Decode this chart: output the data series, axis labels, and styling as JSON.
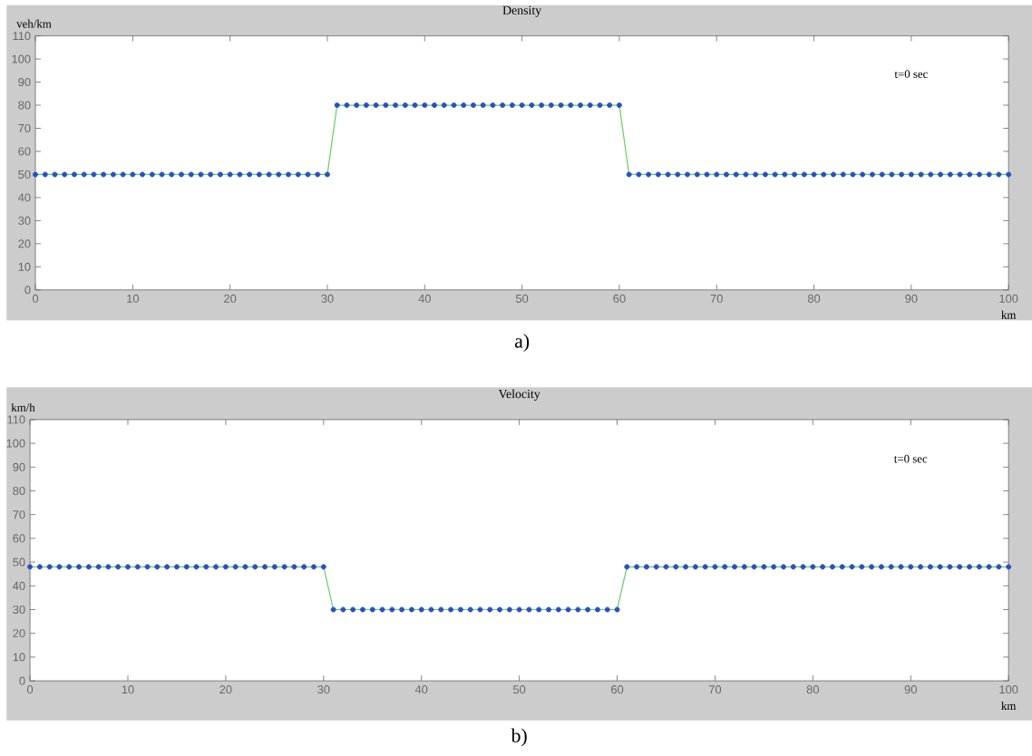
{
  "chart_data": [
    {
      "type": "line",
      "title": "Density",
      "ylabel": "veh/km",
      "xlabel": "km",
      "annotations": [
        "t=0 sec",
        "a)"
      ],
      "x": [
        0,
        1,
        2,
        3,
        4,
        5,
        6,
        7,
        8,
        9,
        10,
        11,
        12,
        13,
        14,
        15,
        16,
        17,
        18,
        19,
        20,
        21,
        22,
        23,
        24,
        25,
        26,
        27,
        28,
        29,
        30,
        31,
        32,
        33,
        34,
        35,
        36,
        37,
        38,
        39,
        40,
        41,
        42,
        43,
        44,
        45,
        46,
        47,
        48,
        49,
        50,
        51,
        52,
        53,
        54,
        55,
        56,
        57,
        58,
        59,
        60,
        61,
        62,
        63,
        64,
        65,
        66,
        67,
        68,
        69,
        70,
        71,
        72,
        73,
        74,
        75,
        76,
        77,
        78,
        79,
        80,
        81,
        82,
        83,
        84,
        85,
        86,
        87,
        88,
        89,
        90,
        91,
        92,
        93,
        94,
        95,
        96,
        97,
        98,
        99,
        100
      ],
      "series": [
        {
          "color": "#66cc66",
          "values": [
            50,
            50,
            50,
            50,
            50,
            50,
            50,
            50,
            50,
            50,
            50,
            50,
            50,
            50,
            50,
            50,
            50,
            50,
            50,
            50,
            50,
            50,
            50,
            50,
            50,
            50,
            50,
            50,
            50,
            50,
            50,
            80,
            80,
            80,
            80,
            80,
            80,
            80,
            80,
            80,
            80,
            80,
            80,
            80,
            80,
            80,
            80,
            80,
            80,
            80,
            80,
            80,
            80,
            80,
            80,
            80,
            80,
            80,
            80,
            80,
            80,
            50,
            50,
            50,
            50,
            50,
            50,
            50,
            50,
            50,
            50,
            50,
            50,
            50,
            50,
            50,
            50,
            50,
            50,
            50,
            50,
            50,
            50,
            50,
            50,
            50,
            50,
            50,
            50,
            50,
            50,
            50,
            50,
            50,
            50,
            50,
            50,
            50,
            50,
            50,
            50
          ]
        },
        {
          "type": "scatter",
          "marker": "circle",
          "color": "#2a4fc4",
          "values": [
            50,
            50,
            50,
            50,
            50,
            50,
            50,
            50,
            50,
            50,
            50,
            50,
            50,
            50,
            50,
            50,
            50,
            50,
            50,
            50,
            50,
            50,
            50,
            50,
            50,
            50,
            50,
            50,
            50,
            50,
            50,
            80,
            80,
            80,
            80,
            80,
            80,
            80,
            80,
            80,
            80,
            80,
            80,
            80,
            80,
            80,
            80,
            80,
            80,
            80,
            80,
            80,
            80,
            80,
            80,
            80,
            80,
            80,
            80,
            80,
            80,
            50,
            50,
            50,
            50,
            50,
            50,
            50,
            50,
            50,
            50,
            50,
            50,
            50,
            50,
            50,
            50,
            50,
            50,
            50,
            50,
            50,
            50,
            50,
            50,
            50,
            50,
            50,
            50,
            50,
            50,
            50,
            50,
            50,
            50,
            50,
            50,
            50,
            50,
            50,
            50
          ]
        }
      ],
      "xlim": [
        0,
        100
      ],
      "xticks": [
        0,
        10,
        20,
        30,
        40,
        50,
        60,
        70,
        80,
        90,
        100
      ],
      "ylim": [
        0,
        110
      ],
      "yticks": [
        0,
        10,
        20,
        30,
        40,
        50,
        60,
        70,
        80,
        90,
        100,
        110
      ]
    },
    {
      "type": "line",
      "title": "Velocity",
      "ylabel": "km/h",
      "xlabel": "km",
      "annotations": [
        "t=0 sec",
        "b)"
      ],
      "x": [
        0,
        1,
        2,
        3,
        4,
        5,
        6,
        7,
        8,
        9,
        10,
        11,
        12,
        13,
        14,
        15,
        16,
        17,
        18,
        19,
        20,
        21,
        22,
        23,
        24,
        25,
        26,
        27,
        28,
        29,
        30,
        31,
        32,
        33,
        34,
        35,
        36,
        37,
        38,
        39,
        40,
        41,
        42,
        43,
        44,
        45,
        46,
        47,
        48,
        49,
        50,
        51,
        52,
        53,
        54,
        55,
        56,
        57,
        58,
        59,
        60,
        61,
        62,
        63,
        64,
        65,
        66,
        67,
        68,
        69,
        70,
        71,
        72,
        73,
        74,
        75,
        76,
        77,
        78,
        79,
        80,
        81,
        82,
        83,
        84,
        85,
        86,
        87,
        88,
        89,
        90,
        91,
        92,
        93,
        94,
        95,
        96,
        97,
        98,
        99,
        100
      ],
      "series": [
        {
          "color": "#66cc66",
          "values": [
            48,
            48,
            48,
            48,
            48,
            48,
            48,
            48,
            48,
            48,
            48,
            48,
            48,
            48,
            48,
            48,
            48,
            48,
            48,
            48,
            48,
            48,
            48,
            48,
            48,
            48,
            48,
            48,
            48,
            48,
            48,
            30,
            30,
            30,
            30,
            30,
            30,
            30,
            30,
            30,
            30,
            30,
            30,
            30,
            30,
            30,
            30,
            30,
            30,
            30,
            30,
            30,
            30,
            30,
            30,
            30,
            30,
            30,
            30,
            30,
            30,
            48,
            48,
            48,
            48,
            48,
            48,
            48,
            48,
            48,
            48,
            48,
            48,
            48,
            48,
            48,
            48,
            48,
            48,
            48,
            48,
            48,
            48,
            48,
            48,
            48,
            48,
            48,
            48,
            48,
            48,
            48,
            48,
            48,
            48,
            48,
            48,
            48,
            48,
            48,
            48
          ]
        },
        {
          "type": "scatter",
          "marker": "circle",
          "color": "#2a4fc4",
          "values": [
            48,
            48,
            48,
            48,
            48,
            48,
            48,
            48,
            48,
            48,
            48,
            48,
            48,
            48,
            48,
            48,
            48,
            48,
            48,
            48,
            48,
            48,
            48,
            48,
            48,
            48,
            48,
            48,
            48,
            48,
            48,
            30,
            30,
            30,
            30,
            30,
            30,
            30,
            30,
            30,
            30,
            30,
            30,
            30,
            30,
            30,
            30,
            30,
            30,
            30,
            30,
            30,
            30,
            30,
            30,
            30,
            30,
            30,
            30,
            30,
            30,
            48,
            48,
            48,
            48,
            48,
            48,
            48,
            48,
            48,
            48,
            48,
            48,
            48,
            48,
            48,
            48,
            48,
            48,
            48,
            48,
            48,
            48,
            48,
            48,
            48,
            48,
            48,
            48,
            48,
            48,
            48,
            48,
            48,
            48,
            48,
            48,
            48,
            48,
            48,
            48
          ]
        }
      ],
      "xlim": [
        0,
        100
      ],
      "xticks": [
        0,
        10,
        20,
        30,
        40,
        50,
        60,
        70,
        80,
        90,
        100
      ],
      "ylim": [
        0,
        110
      ],
      "yticks": [
        0,
        10,
        20,
        30,
        40,
        50,
        60,
        70,
        80,
        90,
        100,
        110
      ]
    }
  ]
}
